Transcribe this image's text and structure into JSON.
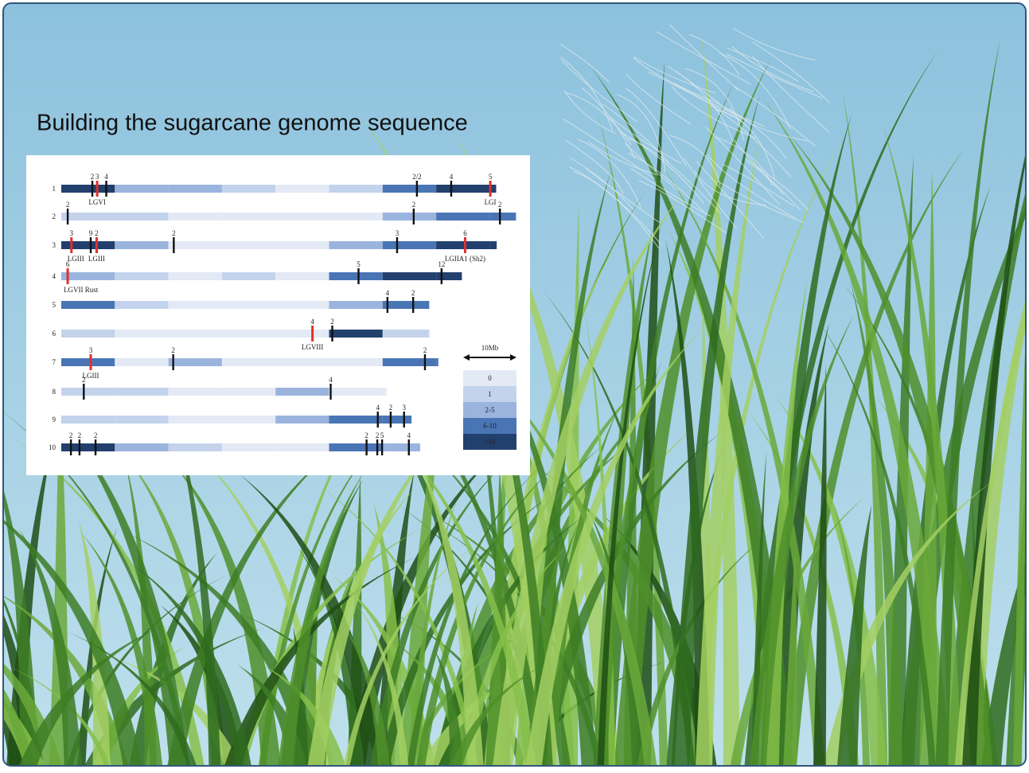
{
  "title": "Building the sugarcane genome sequence",
  "figure": {
    "chromosomes": [
      {
        "label": "1",
        "length": 81.2,
        "segments": [
          ">10",
          "2-5",
          "2-5",
          "1",
          "0",
          "1",
          "6-10",
          ">10",
          ">10"
        ],
        "markers": [
          {
            "pos": 5.8,
            "label": "2",
            "color": "black"
          },
          {
            "pos": 6.7,
            "label": "3",
            "color": "red",
            "note": "LGVI"
          },
          {
            "pos": 8.4,
            "label": "4",
            "color": "black"
          },
          {
            "pos": 66.4,
            "label": "2/2",
            "color": "black"
          },
          {
            "pos": 72.8,
            "label": "4",
            "color": "black"
          },
          {
            "pos": 80.1,
            "label": "5",
            "color": "red",
            "note": "LGI"
          }
        ]
      },
      {
        "label": "2",
        "length": 84.9,
        "segments": [
          "1",
          "1",
          "0",
          "0",
          "0",
          "0",
          "2-5",
          "6-10",
          "6-10"
        ],
        "markers": [
          {
            "pos": 1.2,
            "label": "2",
            "color": "black"
          },
          {
            "pos": 65.8,
            "label": "2",
            "color": "black"
          },
          {
            "pos": 81.9,
            "label": "2",
            "color": "black"
          }
        ]
      },
      {
        "label": "3",
        "length": 81.3,
        "segments": [
          ">10",
          "2-5",
          "0",
          "0",
          "0",
          "2-5",
          "6-10",
          ">10",
          ">10"
        ],
        "markers": [
          {
            "pos": 1.9,
            "label": "3",
            "color": "red",
            "note": "LGIII"
          },
          {
            "pos": 5.5,
            "label": "9",
            "color": "black"
          },
          {
            "pos": 6.6,
            "label": "2",
            "color": "red",
            "note": "LGIII"
          },
          {
            "pos": 21.0,
            "label": "2",
            "color": "black"
          },
          {
            "pos": 62.7,
            "label": "3",
            "color": "black"
          },
          {
            "pos": 75.4,
            "label": "6",
            "color": "red",
            "note": "LGIIA1 (Sh2)"
          }
        ]
      },
      {
        "label": "4",
        "length": 74.8,
        "segments": [
          "2-5",
          "1",
          "0",
          "1",
          "0",
          "6-10",
          ">10",
          ">10"
        ],
        "markers": [
          {
            "pos": 1.2,
            "label": "6",
            "color": "red",
            "note": "LGVII Rust"
          },
          {
            "pos": 55.5,
            "label": "5",
            "color": "black"
          },
          {
            "pos": 71.0,
            "label": "12",
            "color": "black"
          }
        ]
      },
      {
        "label": "5",
        "length": 68.7,
        "segments": [
          "6-10",
          "1",
          "0",
          "0",
          "0",
          "2-5",
          "6-10"
        ],
        "markers": [
          {
            "pos": 60.9,
            "label": "4",
            "color": "black"
          },
          {
            "pos": 65.7,
            "label": "2",
            "color": "black"
          }
        ]
      },
      {
        "label": "6",
        "length": 68.7,
        "segments": [
          "1",
          "0",
          "0",
          "0",
          "0",
          ">10",
          "1"
        ],
        "markers": [
          {
            "pos": 46.9,
            "label": "4",
            "color": "red",
            "note": "LGVIII"
          },
          {
            "pos": 50.6,
            "label": "2",
            "color": "black"
          }
        ]
      },
      {
        "label": "7",
        "length": 70.4,
        "segments": [
          "6-10",
          "0",
          "2-5",
          "0",
          "0",
          "0",
          "6-10",
          "6-10"
        ],
        "markers": [
          {
            "pos": 5.5,
            "label": "3",
            "color": "red",
            "note": "LGIII"
          },
          {
            "pos": 20.9,
            "label": "2",
            "color": "black"
          },
          {
            "pos": 67.9,
            "label": "2",
            "color": "black"
          }
        ]
      },
      {
        "label": "8",
        "length": 60.7,
        "segments": [
          "1",
          "1",
          "0",
          "0",
          "2-5",
          "0",
          "0"
        ],
        "markers": [
          {
            "pos": 4.2,
            "label": "2",
            "color": "black"
          },
          {
            "pos": 50.3,
            "label": "4",
            "color": "black"
          }
        ]
      },
      {
        "label": "9",
        "length": 65.4,
        "segments": [
          "1",
          "1",
          "0",
          "0",
          "2-5",
          "6-10",
          "6-10"
        ],
        "markers": [
          {
            "pos": 59.1,
            "label": "4",
            "color": "black"
          },
          {
            "pos": 61.5,
            "label": "2",
            "color": "black"
          },
          {
            "pos": 64.0,
            "label": "3",
            "color": "black"
          }
        ]
      },
      {
        "label": "10",
        "length": 67.0,
        "segments": [
          ">10",
          "2-5",
          "1",
          "0",
          "0",
          "6-10",
          "2-5"
        ],
        "markers": [
          {
            "pos": 1.8,
            "label": "2",
            "color": "black"
          },
          {
            "pos": 3.4,
            "label": "2",
            "color": "black"
          },
          {
            "pos": 6.4,
            "label": "2",
            "color": "black"
          },
          {
            "pos": 57.0,
            "label": "2",
            "color": "black"
          },
          {
            "pos": 59.0,
            "label": "2",
            "color": "black"
          },
          {
            "pos": 59.9,
            "label": "5",
            "color": "black"
          },
          {
            "pos": 64.9,
            "label": "4",
            "color": "black"
          }
        ]
      }
    ],
    "legend": {
      "scale_label": "10Mb",
      "scale": 10,
      "classes": [
        {
          "label": "0",
          "color": "#e3eaf5"
        },
        {
          "label": "1",
          "color": "#c4d3ec"
        },
        {
          "label": "2-5",
          "color": "#9bb4de"
        },
        {
          "label": "6-10",
          "color": "#4a75b5"
        },
        {
          "label": ">10",
          "color": "#22406d"
        }
      ]
    }
  }
}
